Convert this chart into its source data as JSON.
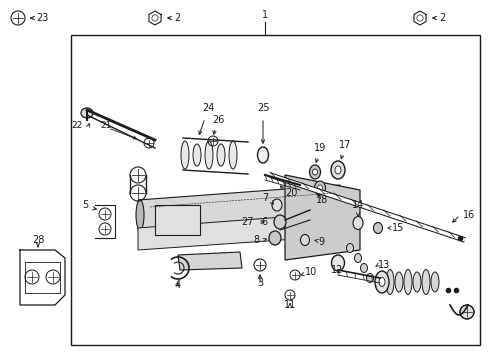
{
  "bg_color": "#ffffff",
  "lc": "#1a1a1a",
  "fig_width": 4.89,
  "fig_height": 3.6,
  "dpi": 100
}
